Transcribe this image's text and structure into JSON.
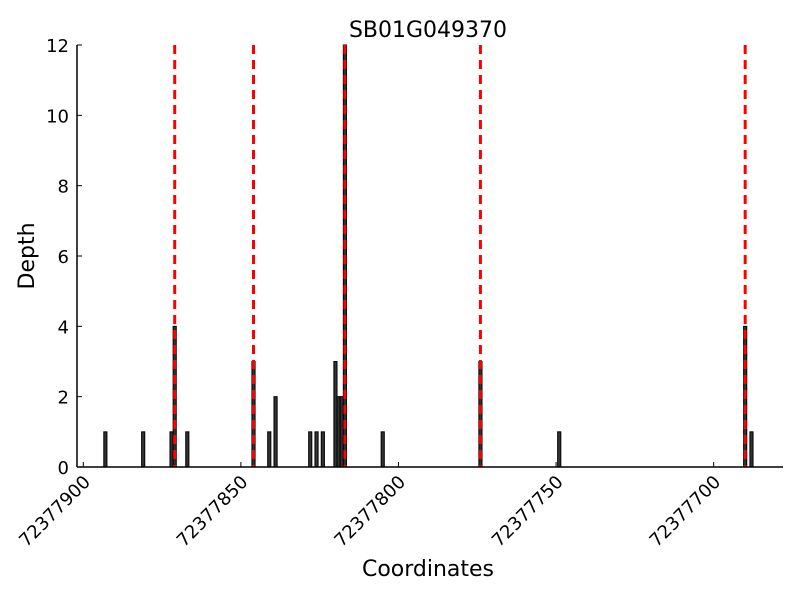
{
  "chart_data": {
    "type": "bar",
    "title": "SB01G049370",
    "xlabel": "Coordinates",
    "ylabel": "Depth",
    "xlim": [
      72377902,
      72377678
    ],
    "ylim": [
      0,
      12
    ],
    "x_reversed": true,
    "grid": false,
    "xticks": [
      72377900,
      72377850,
      72377800,
      72377750,
      72377700
    ],
    "yticks": [
      0,
      2,
      4,
      6,
      8,
      10,
      12
    ],
    "bars": [
      {
        "x": 72377893,
        "value": 1
      },
      {
        "x": 72377881,
        "value": 1
      },
      {
        "x": 72377872,
        "value": 1
      },
      {
        "x": 72377871,
        "value": 4
      },
      {
        "x": 72377867,
        "value": 1
      },
      {
        "x": 72377846,
        "value": 3
      },
      {
        "x": 72377841,
        "value": 1
      },
      {
        "x": 72377839,
        "value": 2
      },
      {
        "x": 72377828,
        "value": 1
      },
      {
        "x": 72377826,
        "value": 1
      },
      {
        "x": 72377824,
        "value": 1
      },
      {
        "x": 72377820,
        "value": 3
      },
      {
        "x": 72377819,
        "value": 2
      },
      {
        "x": 72377818,
        "value": 2
      },
      {
        "x": 72377817,
        "value": 12
      },
      {
        "x": 72377805,
        "value": 1
      },
      {
        "x": 72377774,
        "value": 3
      },
      {
        "x": 72377749,
        "value": 1
      },
      {
        "x": 72377690,
        "value": 4
      },
      {
        "x": 72377688,
        "value": 1
      }
    ],
    "reference_lines": [
      72377871,
      72377846,
      72377817,
      72377774,
      72377690
    ],
    "colors": {
      "bar": "#333333",
      "bar_edge": "#000000",
      "reference_line": "#ff0000"
    }
  }
}
